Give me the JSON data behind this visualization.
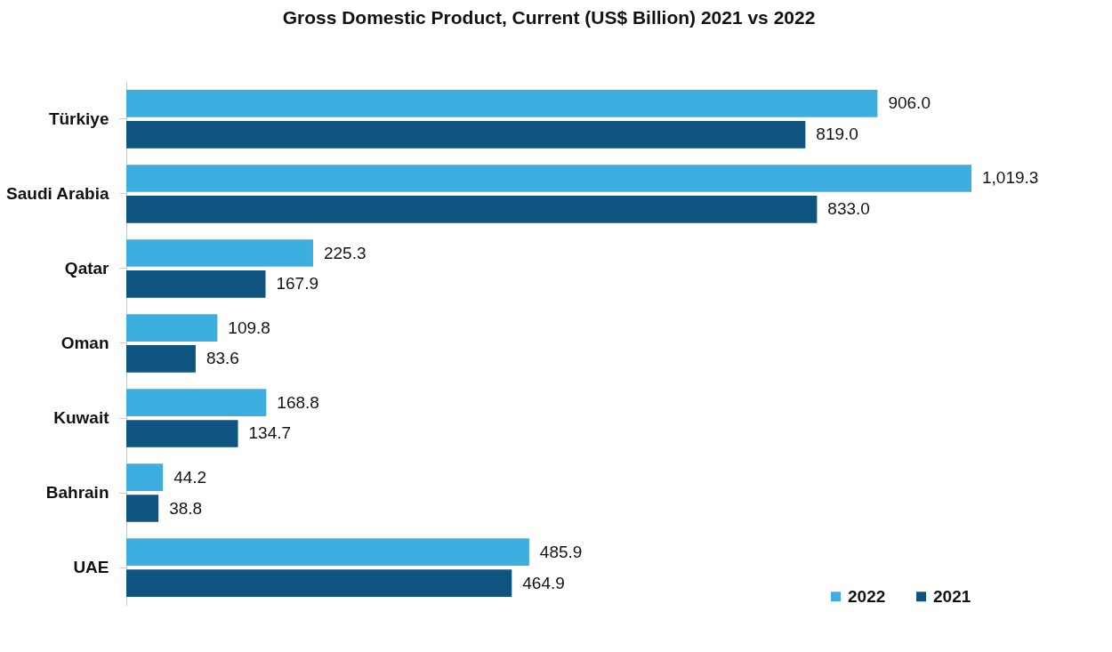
{
  "chart_data": {
    "type": "bar",
    "orientation": "horizontal",
    "title": "Gross Domestic Product, Current (US$ Billion) 2021 vs 2022",
    "categories": [
      "Türkiye",
      "Saudi Arabia",
      "Qatar",
      "Oman",
      "Kuwait",
      "Bahrain",
      "UAE"
    ],
    "series": [
      {
        "name": "2022",
        "color": "#3daee0",
        "values": [
          906.0,
          1019.3,
          225.3,
          109.8,
          168.8,
          44.2,
          485.9
        ],
        "value_labels": [
          "906.0",
          "1,019.3",
          "225.3",
          "109.8",
          "168.8",
          "44.2",
          "485.9"
        ]
      },
      {
        "name": "2021",
        "color": "#0f5481",
        "values": [
          819.0,
          833.0,
          167.9,
          83.6,
          134.7,
          38.8,
          464.9
        ],
        "value_labels": [
          "819.0",
          "833.0",
          "167.9",
          "83.6",
          "134.7",
          "38.8",
          "464.9"
        ]
      }
    ],
    "tick_labels": "y",
    "legend": "bottom right"
  }
}
